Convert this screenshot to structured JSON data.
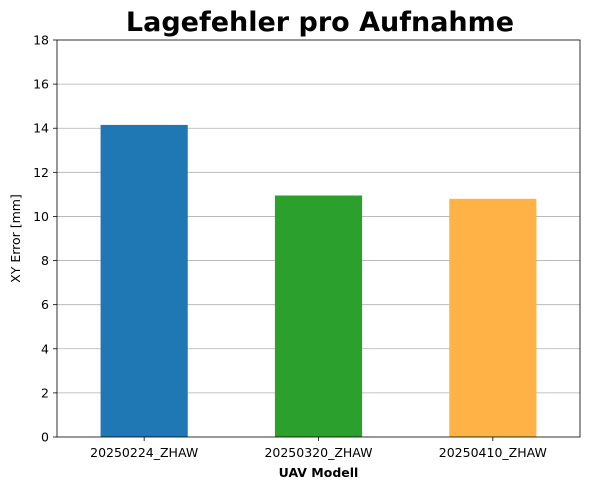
{
  "chart_data": {
    "type": "bar",
    "title": "Lagefehler pro Aufnahme",
    "xlabel": "UAV Modell",
    "ylabel": "XY Error [mm]",
    "ylim": [
      0,
      18
    ],
    "yticks": [
      0,
      2,
      4,
      6,
      8,
      10,
      12,
      14,
      16,
      18
    ],
    "grid": "y-axis",
    "categories": [
      "20250224_ZHAW",
      "20250320_ZHAW",
      "20250410_ZHAW"
    ],
    "values": [
      14.15,
      10.95,
      10.8
    ],
    "colors": [
      "#1f77b4",
      "#2ca02c",
      "#ffb347"
    ]
  }
}
